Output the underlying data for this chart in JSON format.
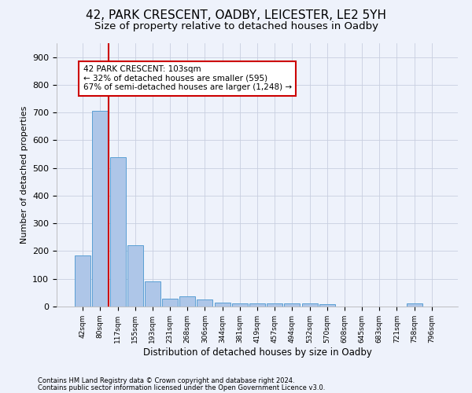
{
  "title1": "42, PARK CRESCENT, OADBY, LEICESTER, LE2 5YH",
  "title2": "Size of property relative to detached houses in Oadby",
  "xlabel": "Distribution of detached houses by size in Oadby",
  "ylabel": "Number of detached properties",
  "categories": [
    "42sqm",
    "80sqm",
    "117sqm",
    "155sqm",
    "193sqm",
    "231sqm",
    "268sqm",
    "306sqm",
    "344sqm",
    "381sqm",
    "419sqm",
    "457sqm",
    "494sqm",
    "532sqm",
    "570sqm",
    "608sqm",
    "645sqm",
    "683sqm",
    "721sqm",
    "758sqm",
    "796sqm"
  ],
  "values": [
    185,
    707,
    540,
    220,
    90,
    27,
    37,
    25,
    15,
    12,
    12,
    10,
    10,
    10,
    9,
    0,
    0,
    0,
    0,
    10,
    0
  ],
  "bar_color": "#aec6e8",
  "bar_edge_color": "#5a9fd4",
  "vline_x": 1.5,
  "vline_color": "#cc0000",
  "annotation_text": "42 PARK CRESCENT: 103sqm\n← 32% of detached houses are smaller (595)\n67% of semi-detached houses are larger (1,248) →",
  "annotation_box_color": "#ffffff",
  "annotation_box_edge": "#cc0000",
  "ylim": [
    0,
    950
  ],
  "yticks": [
    0,
    100,
    200,
    300,
    400,
    500,
    600,
    700,
    800,
    900
  ],
  "footer1": "Contains HM Land Registry data © Crown copyright and database right 2024.",
  "footer2": "Contains public sector information licensed under the Open Government Licence v3.0.",
  "bg_color": "#eef2fb",
  "plot_bg": "#eef2fb",
  "title1_fontsize": 11,
  "title2_fontsize": 9.5
}
